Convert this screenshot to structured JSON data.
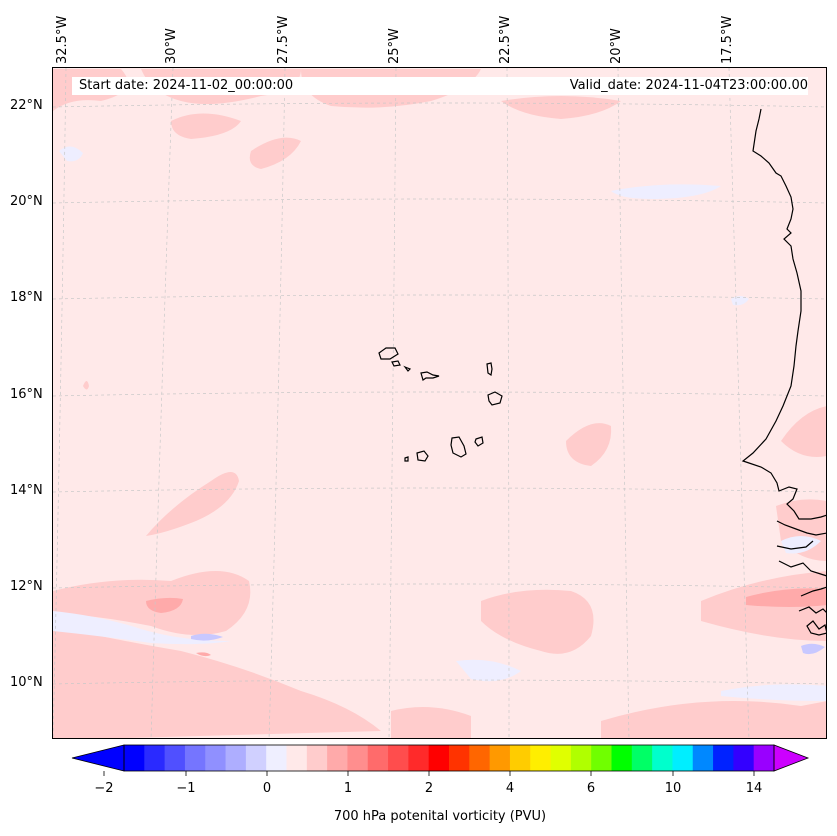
{
  "header": {
    "start_date": "Start date: 2024-11-02_00:00:00",
    "valid_date": "Valid_date: 2024-11-04T23:00:00.00"
  },
  "axes": {
    "longitude_labels": [
      "32.5°W",
      "30°W",
      "27.5°W",
      "25°W",
      "22.5°W",
      "20°W",
      "17.5°W"
    ],
    "latitude_labels": [
      "22°N",
      "20°N",
      "18°N",
      "16°N",
      "14°N",
      "12°N",
      "10°N"
    ]
  },
  "colorbar": {
    "label": "700 hPa potenital vorticity (PVU)",
    "tick_labels": [
      "−2",
      "−1",
      "0",
      "1",
      "2",
      "4",
      "6",
      "10",
      "14"
    ],
    "colors": [
      "#0000ff",
      "#2a2aff",
      "#5050ff",
      "#7575ff",
      "#9090ff",
      "#aeaeff",
      "#d0d0ff",
      "#efefff",
      "#ffe9e9",
      "#ffcccc",
      "#ffaaaa",
      "#ff8e8e",
      "#ff6b6b",
      "#ff4d4d",
      "#ff2a2a",
      "#ff0000",
      "#ff3300",
      "#ff6600",
      "#ff9900",
      "#ffcc00",
      "#ffee00",
      "#e0ff00",
      "#b0ff00",
      "#70ff00",
      "#00ff00",
      "#00ff66",
      "#00ffcc",
      "#00eeff",
      "#0088ff",
      "#0022ff",
      "#3300ff",
      "#9900ff"
    ],
    "under_color": "#0000ff",
    "over_color": "#cc00ff"
  },
  "map": {
    "background_color": "#ffe9e9",
    "positive_patch_color": "#ffcccc",
    "strong_patch_color": "#ffaaaa",
    "negative_patch_color": "#eeeeff",
    "strong_negative_color": "#c8c8ff",
    "coastline_color": "#000000",
    "grid_color": "#c8c8c8"
  }
}
